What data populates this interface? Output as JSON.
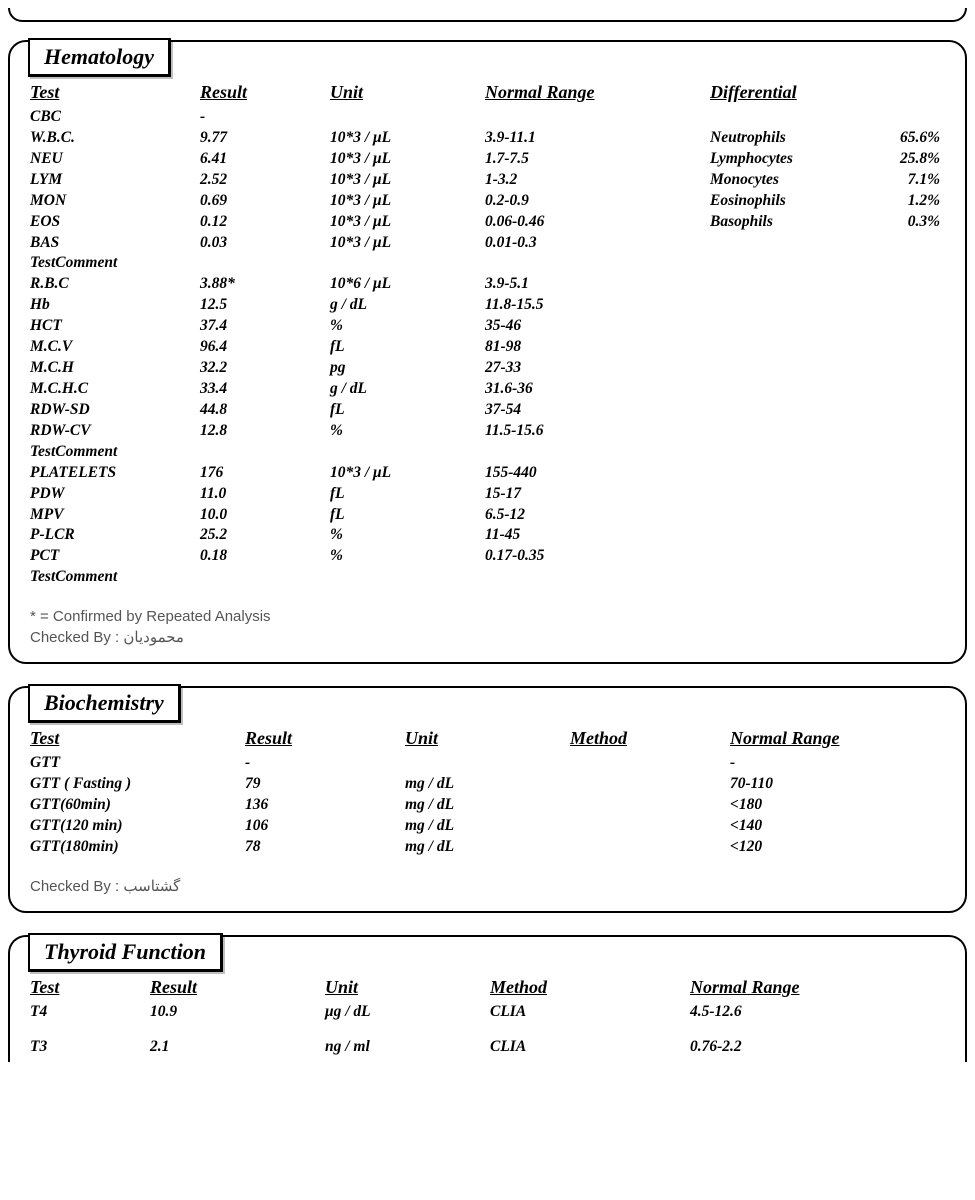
{
  "colors": {
    "text": "#000000",
    "border": "#000000",
    "footer_text": "#555555",
    "background": "#ffffff"
  },
  "fonts": {
    "body_family": "Georgia, Times New Roman, serif",
    "header_size_pt": 14,
    "data_size_pt": 11
  },
  "hematology": {
    "title": "Hematology",
    "headers": {
      "test": "Test",
      "result": "Result",
      "unit": "Unit",
      "range": "Normal Range",
      "diff": "Differential"
    },
    "rows": [
      {
        "test": "CBC",
        "result": "-",
        "unit": "",
        "range": ""
      },
      {
        "test": "W.B.C.",
        "result": "9.77",
        "unit": "10*3 / μL",
        "range": "3.9-11.1"
      },
      {
        "test": "NEU",
        "result": "6.41",
        "unit": "10*3 / μL",
        "range": "1.7-7.5"
      },
      {
        "test": "LYM",
        "result": "2.52",
        "unit": "10*3 / μL",
        "range": "1-3.2"
      },
      {
        "test": "MON",
        "result": "0.69",
        "unit": "10*3 / μL",
        "range": "0.2-0.9"
      },
      {
        "test": "EOS",
        "result": "0.12",
        "unit": "10*3 / μL",
        "range": "0.06-0.46"
      },
      {
        "test": "BAS",
        "result": "0.03",
        "unit": "10*3 / μL",
        "range": "0.01-0.3"
      },
      {
        "test": "TestComment",
        "result": "",
        "unit": "",
        "range": ""
      },
      {
        "test": "R.B.C",
        "result": "3.88*",
        "unit": "10*6 / μL",
        "range": "3.9-5.1"
      },
      {
        "test": "Hb",
        "result": "12.5",
        "unit": "g / dL",
        "range": "11.8-15.5"
      },
      {
        "test": "HCT",
        "result": "37.4",
        "unit": "%",
        "range": "35-46"
      },
      {
        "test": "M.C.V",
        "result": "96.4",
        "unit": "fL",
        "range": "81-98"
      },
      {
        "test": "M.C.H",
        "result": "32.2",
        "unit": "pg",
        "range": "27-33"
      },
      {
        "test": "M.C.H.C",
        "result": "33.4",
        "unit": "g / dL",
        "range": "31.6-36"
      },
      {
        "test": "RDW-SD",
        "result": "44.8",
        "unit": "fL",
        "range": "37-54"
      },
      {
        "test": "RDW-CV",
        "result": "12.8",
        "unit": "%",
        "range": "11.5-15.6"
      },
      {
        "test": "TestComment",
        "result": "",
        "unit": "",
        "range": ""
      },
      {
        "test": "PLATELETS",
        "result": "176",
        "unit": "10*3 / μL",
        "range": "155-440"
      },
      {
        "test": "PDW",
        "result": "11.0",
        "unit": "fL",
        "range": "15-17"
      },
      {
        "test": "MPV",
        "result": "10.0",
        "unit": "fL",
        "range": "6.5-12"
      },
      {
        "test": "P-LCR",
        "result": "25.2",
        "unit": "%",
        "range": "11-45"
      },
      {
        "test": "PCT",
        "result": "0.18",
        "unit": "%",
        "range": "0.17-0.35"
      },
      {
        "test": "TestComment",
        "result": "",
        "unit": "",
        "range": ""
      }
    ],
    "differential": [
      {
        "label": "Neutrophils",
        "value": "65.6%"
      },
      {
        "label": "Lymphocytes",
        "value": "25.8%"
      },
      {
        "label": "Monocytes",
        "value": "7.1%"
      },
      {
        "label": "Eosinophils",
        "value": "1.2%"
      },
      {
        "label": "Basophils",
        "value": "0.3%"
      }
    ],
    "footer_note_1": "* = Confirmed by Repeated Analysis",
    "footer_note_2": "Checked By : محمودیان"
  },
  "biochemistry": {
    "title": "Biochemistry",
    "headers": {
      "test": "Test",
      "result": "Result",
      "unit": "Unit",
      "method": "Method",
      "range": "Normal Range"
    },
    "rows": [
      {
        "test": "GTT",
        "result": "-",
        "unit": "",
        "method": "",
        "range": "-"
      },
      {
        "test": "GTT ( Fasting )",
        "result": "79",
        "unit": "mg / dL",
        "method": "",
        "range": "70-110"
      },
      {
        "test": "GTT(60min)",
        "result": "136",
        "unit": "mg / dL",
        "method": "",
        "range": "<180"
      },
      {
        "test": "GTT(120 min)",
        "result": "106",
        "unit": "mg / dL",
        "method": "",
        "range": "<140"
      },
      {
        "test": "GTT(180min)",
        "result": "78",
        "unit": "mg / dL",
        "method": "",
        "range": "<120"
      }
    ],
    "footer_note": "Checked By : گشتاسب"
  },
  "thyroid": {
    "title": "Thyroid Function",
    "headers": {
      "test": "Test",
      "result": "Result",
      "unit": "Unit",
      "method": "Method",
      "range": "Normal Range"
    },
    "rows": [
      {
        "test": "T4",
        "result": "10.9",
        "unit": "μg / dL",
        "method": "CLIA",
        "range": "4.5-12.6"
      },
      {
        "test": "T3",
        "result": "2.1",
        "unit": "ng / ml",
        "method": "CLIA",
        "range": "0.76-2.2"
      }
    ]
  }
}
